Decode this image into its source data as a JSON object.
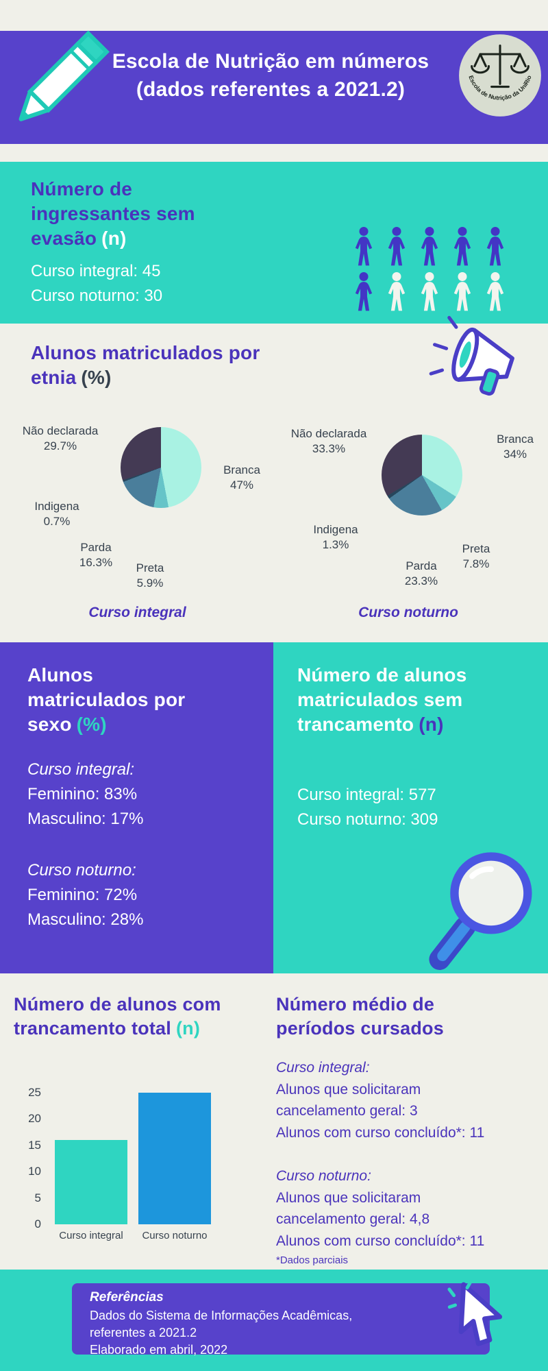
{
  "colors": {
    "purple": "#5742cb",
    "purple_text": "#4a33bb",
    "teal": "#2fd5c1",
    "background": "#f0f0e9",
    "blue_bar": "#1d96dc",
    "dark_text": "#37424e",
    "logo_circle": "#d8ddd0"
  },
  "header": {
    "title": "Escola de Nutrição em números\n(dados referentes a 2021.2)",
    "logo_text": "Escola de Nutrição da UniRio"
  },
  "sections": {
    "ingressantes": {
      "heading": "Número de\ningressantes sem\nevasão",
      "suffix": "(n)",
      "body": "Curso integral: 45\nCurso noturno: 30",
      "pictogram": {
        "rows": [
          [
            "filled",
            "filled",
            "filled",
            "filled",
            "filled"
          ],
          [
            "filled",
            "outline",
            "outline",
            "outline",
            "outline"
          ]
        ],
        "filled_color": "#4335c5",
        "outline_color": "#f3f4ee"
      }
    },
    "etnia": {
      "heading": "Alunos matriculados por\netnia",
      "suffix": "(%)"
    },
    "sexo": {
      "heading": "Alunos\nmatriculados por\nsexo",
      "suffix": "(%)",
      "groups": [
        {
          "label": "Curso integral:",
          "lines": "Feminino: 83%\nMasculino: 17%"
        },
        {
          "label": "Curso noturno:",
          "lines": "Feminino: 72%\nMasculino: 28%"
        }
      ]
    },
    "sem_trancamento": {
      "heading": "Número de alunos\nmatriculados sem\ntrancamento",
      "suffix": "(n)",
      "body": "Curso integral: 577\nCurso noturno: 309"
    },
    "trancamento_total": {
      "heading": "Número de alunos com\ntrancamento total",
      "suffix": "(n)"
    },
    "periodos": {
      "heading": "Número médio de\nperíodos cursados",
      "groups": [
        {
          "label": "Curso integral:",
          "lines": "Alunos que solicitaram\ncancelamento geral: 3\nAlunos com curso concluído*: 11"
        },
        {
          "label": "Curso noturno:",
          "lines": "Alunos que solicitaram\ncancelamento geral: 4,8\nAlunos com curso concluído*: 11"
        }
      ],
      "footnote": "*Dados parciais"
    },
    "referencias": {
      "title": "Referências",
      "body": "Dados do Sistema de Informações Acadêmicas,\nreferentes a 2021.2\nElaborado em abril, 2022"
    }
  },
  "chart_data": [
    {
      "type": "pie",
      "title": "Curso integral",
      "legend_position": "around",
      "slices": [
        {
          "label": "Branca",
          "value": 47,
          "pct_label": "47%",
          "color": "#a9f2e3"
        },
        {
          "label": "Preta",
          "value": 5.9,
          "pct_label": "5.9%",
          "color": "#66c4c8"
        },
        {
          "label": "Parda",
          "value": 16.3,
          "pct_label": "16.3%",
          "color": "#4a7e9b"
        },
        {
          "label": "Indigena",
          "value": 0.7,
          "pct_label": "0.7%",
          "color": "#27465c"
        },
        {
          "label": "Não declarada",
          "value": 29.7,
          "pct_label": "29.7%",
          "color": "#443a54"
        }
      ]
    },
    {
      "type": "pie",
      "title": "Curso noturno",
      "legend_position": "around",
      "slices": [
        {
          "label": "Branca",
          "value": 34,
          "pct_label": "34%",
          "color": "#a9f2e3"
        },
        {
          "label": "Preta",
          "value": 7.8,
          "pct_label": "7.8%",
          "color": "#66c4c8"
        },
        {
          "label": "Parda",
          "value": 23.3,
          "pct_label": "23.3%",
          "color": "#4a7e9b"
        },
        {
          "label": "Indigena",
          "value": 1.3,
          "pct_label": "1.3%",
          "color": "#27465c"
        },
        {
          "label": "Não declarada",
          "value": 33.3,
          "pct_label": "33.3%",
          "color": "#443a54"
        }
      ]
    },
    {
      "type": "bar",
      "title": "Número de alunos com trancamento total (n)",
      "categories": [
        "Curso integral",
        "Curso noturno"
      ],
      "values": [
        16,
        25
      ],
      "colors": [
        "#2fd5c1",
        "#1d96dc"
      ],
      "ylim": [
        0,
        25
      ],
      "yticks": [
        25,
        20,
        15,
        10,
        5,
        0
      ],
      "grid": false
    }
  ]
}
